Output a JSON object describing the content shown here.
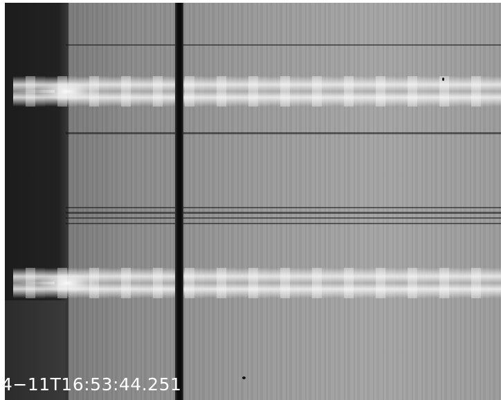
{
  "image": {
    "timestamp_text": "4−11T16:53:44.251"
  }
}
